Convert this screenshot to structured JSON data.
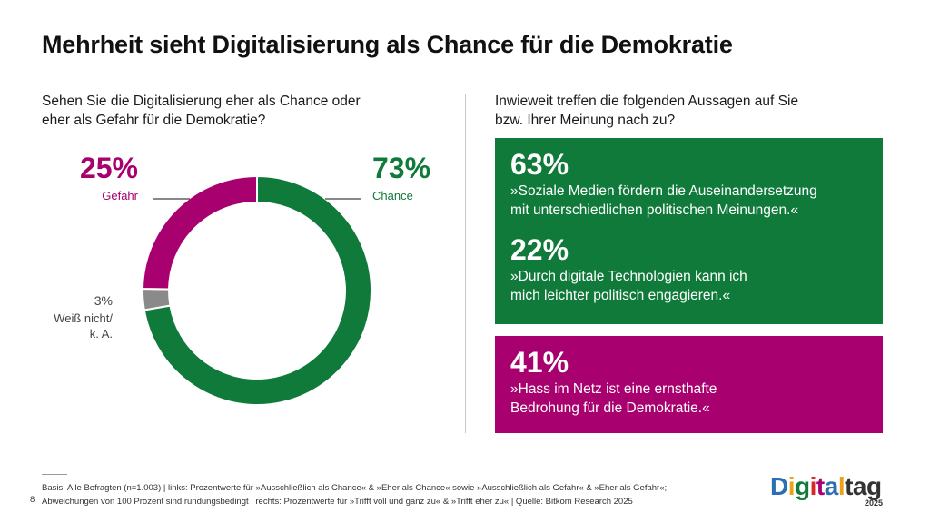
{
  "title": "Mehrheit sieht Digitalisierung als Chance für die Demokratie",
  "colors": {
    "chance": "#107a3a",
    "gefahr": "#a8006e",
    "unknown": "#8a8a8a"
  },
  "left": {
    "question_line1": "Sehen Sie die Digitalisierung eher als Chance oder",
    "question_line2": "eher als Gefahr für die Demokratie?"
  },
  "chart_data": {
    "type": "pie",
    "style": "donut",
    "title": "Sehen Sie die Digitalisierung eher als Chance oder eher als Gefahr für die Demokratie?",
    "slices": [
      {
        "label": "Chance",
        "value": 73,
        "display": "73%",
        "color": "#107a3a"
      },
      {
        "label": "Weiß nicht/ k. A.",
        "value": 3,
        "display": "3%",
        "color": "#8a8a8a"
      },
      {
        "label": "Gefahr",
        "value": 25,
        "display": "25%",
        "color": "#a8006e"
      }
    ],
    "unknown_label_line1": "Weiß nicht/",
    "unknown_label_line2": "k. A."
  },
  "right": {
    "question_line1": "Inwieweit treffen die folgenden Aussagen auf Sie",
    "question_line2": "bzw. Ihrer Meinung nach zu?",
    "stats": [
      {
        "pct": "63%",
        "line1": "»Soziale Medien fördern die Auseinandersetzung",
        "line2": "mit unterschiedlichen politischen Meinungen.«"
      },
      {
        "pct": "22%",
        "line1": "»Durch digitale Technologien kann ich",
        "line2": "mich leichter politisch engagieren.«"
      },
      {
        "pct": "41%",
        "line1": "»Hass im Netz ist eine ernsthafte",
        "line2": "Bedrohung für die Demokratie.«"
      }
    ]
  },
  "footnote": {
    "line1": "Basis: Alle Befragten (n=1.003) | links: Prozentwerte für »Ausschließlich als Chance« & »Eher als Chance« sowie »Ausschließlich als Gefahr« & »Eher als Gefahr«;",
    "line2": "Abweichungen von 100 Prozent sind rundungsbedingt | rechts: Prozentwerte für »Trifft voll und ganz zu« & »Trifft eher zu« | Quelle: Bitkom Research 2025",
    "page": "8"
  },
  "logo": {
    "letters": [
      "D",
      "i",
      "g",
      "i",
      "t",
      "a",
      "l",
      "t",
      "a",
      "g"
    ],
    "letter_colors": [
      "#2a6fb5",
      "#e8a317",
      "#107a3a",
      "#d9262b",
      "#a8006e",
      "#2a6fb5",
      "#e8a317",
      "#333333",
      "#333333",
      "#333333"
    ],
    "year": "2025"
  }
}
